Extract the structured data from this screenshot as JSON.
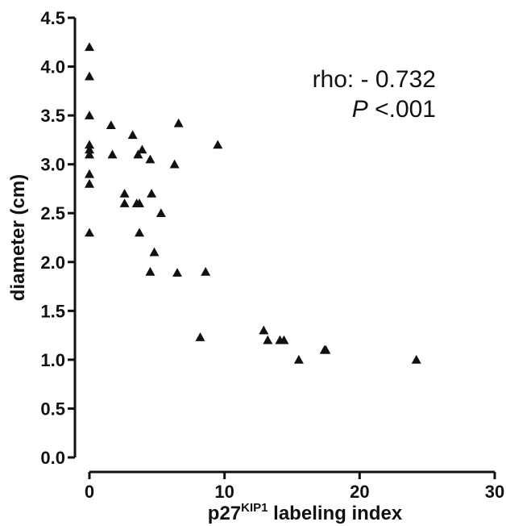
{
  "chart_data": {
    "type": "scatter",
    "title": "",
    "xlabel": {
      "main": "p27",
      "superscript": "KIP1",
      "rest": " labeling index"
    },
    "ylabel": "diameter (cm)",
    "xlim": [
      0,
      30
    ],
    "ylim": [
      0,
      4.5
    ],
    "x_ticks": [
      "0",
      "10",
      "20",
      "30"
    ],
    "y_ticks": [
      "0.0",
      "0.5",
      "1.0",
      "1.5",
      "2.0",
      "2.5",
      "3.0",
      "3.5",
      "4.0",
      "4.5"
    ],
    "x_tick_values": [
      0,
      10,
      20,
      30
    ],
    "y_tick_values": [
      0,
      0.5,
      1.0,
      1.5,
      2.0,
      2.5,
      3.0,
      3.5,
      4.0,
      4.5
    ],
    "grid": false,
    "marker": "triangle",
    "marker_color": "#111111",
    "annotation": {
      "rho": "rho: - 0.732",
      "p_italic": "P",
      "p_rest": " <.001"
    },
    "points": [
      [
        0,
        4.2
      ],
      [
        0,
        3.9
      ],
      [
        0,
        3.5
      ],
      [
        0,
        3.2
      ],
      [
        0,
        3.15
      ],
      [
        0,
        3.1
      ],
      [
        0,
        2.9
      ],
      [
        0,
        2.8
      ],
      [
        0,
        2.3
      ],
      [
        1.6,
        3.4
      ],
      [
        1.7,
        3.1
      ],
      [
        2.6,
        2.7
      ],
      [
        2.6,
        2.6
      ],
      [
        3.2,
        3.3
      ],
      [
        3.6,
        3.1
      ],
      [
        3.5,
        2.6
      ],
      [
        3.7,
        2.6
      ],
      [
        3.9,
        3.15
      ],
      [
        3.7,
        2.3
      ],
      [
        4.5,
        3.05
      ],
      [
        4.6,
        2.7
      ],
      [
        4.8,
        2.1
      ],
      [
        4.5,
        1.9
      ],
      [
        5.3,
        2.5
      ],
      [
        6.3,
        3.0
      ],
      [
        6.6,
        3.42
      ],
      [
        6.5,
        1.89
      ],
      [
        8.2,
        1.23
      ],
      [
        8.6,
        1.9
      ],
      [
        9.5,
        3.2
      ],
      [
        12.9,
        1.3
      ],
      [
        13.2,
        1.2
      ],
      [
        14.1,
        1.2
      ],
      [
        14.4,
        1.2
      ],
      [
        15.5,
        1.0
      ],
      [
        17.4,
        1.1
      ],
      [
        17.5,
        1.1
      ],
      [
        24.2,
        1.0
      ]
    ]
  }
}
